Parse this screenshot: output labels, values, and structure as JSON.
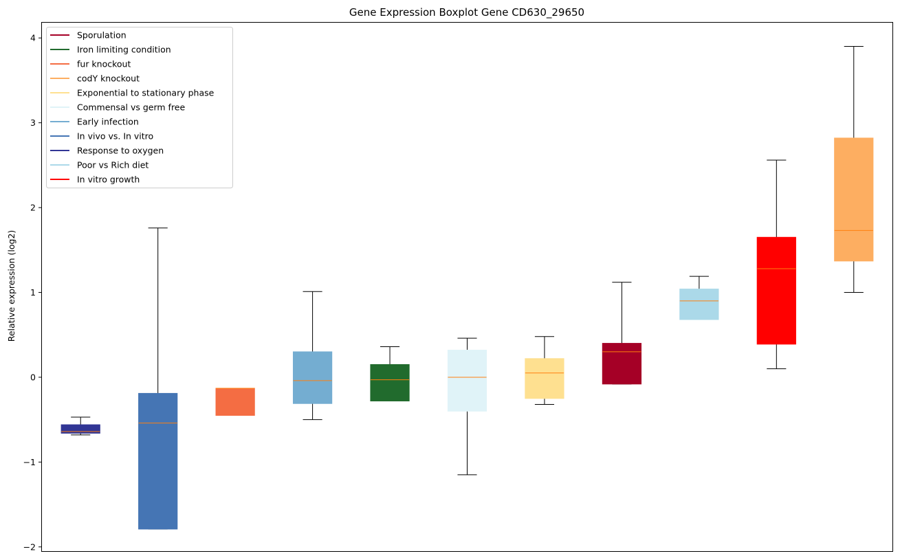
{
  "chart_data": {
    "type": "boxplot",
    "title": "Gene Expression Boxplot Gene CD630_29650",
    "ylabel": "Relative expression (log2)",
    "xlabel": "",
    "ylim": [
      -2.05,
      4.18
    ],
    "yticks": [
      -2,
      -1,
      0,
      1,
      2,
      3,
      4
    ],
    "ytick_labels": [
      "−2",
      "−1",
      "0",
      "1",
      "2",
      "3",
      "4"
    ],
    "legend_position": "upper-left",
    "legend": [
      {
        "label": "Sporulation",
        "color": "#a50026"
      },
      {
        "label": "Iron limiting condition",
        "color": "#216b2d"
      },
      {
        "label": "fur knockout",
        "color": "#f46d43"
      },
      {
        "label": "codY knockout",
        "color": "#fdae61"
      },
      {
        "label": "Exponential to stationary phase",
        "color": "#fee090"
      },
      {
        "label": "Commensal vs germ free",
        "color": "#e0f3f8"
      },
      {
        "label": "Early infection",
        "color": "#74add1"
      },
      {
        "label": "In vivo vs. In vitro",
        "color": "#4575b4"
      },
      {
        "label": "Response to oxygen",
        "color": "#313695"
      },
      {
        "label": "Poor vs Rich diet",
        "color": "#abd9e9"
      },
      {
        "label": "In vitro growth",
        "color": "#ff0000"
      }
    ],
    "boxes": [
      {
        "condition": "Response to oxygen",
        "color": "#313695",
        "whisker_low": -0.68,
        "q1": -0.66,
        "median": -0.64,
        "q3": -0.56,
        "whisker_high": -0.47
      },
      {
        "condition": "In vivo vs. In vitro",
        "color": "#4575b4",
        "whisker_low": -1.79,
        "q1": -1.79,
        "median": -0.54,
        "q3": -0.19,
        "whisker_high": 1.76
      },
      {
        "condition": "fur knockout",
        "color": "#f46d43",
        "whisker_low": -0.45,
        "q1": -0.45,
        "median": -0.13,
        "q3": -0.13,
        "whisker_high": -0.13
      },
      {
        "condition": "Early infection",
        "color": "#74add1",
        "whisker_low": -0.5,
        "q1": -0.31,
        "median": -0.04,
        "q3": 0.3,
        "whisker_high": 1.01
      },
      {
        "condition": "Iron limiting condition",
        "color": "#216b2d",
        "whisker_low": -0.28,
        "q1": -0.28,
        "median": -0.03,
        "q3": 0.15,
        "whisker_high": 0.36
      },
      {
        "condition": "Commensal vs germ free",
        "color": "#e0f3f8",
        "whisker_low": -1.15,
        "q1": -0.4,
        "median": 0.0,
        "q3": 0.32,
        "whisker_high": 0.46
      },
      {
        "condition": "Exponential to stationary phase",
        "color": "#fee090",
        "whisker_low": -0.32,
        "q1": -0.25,
        "median": 0.05,
        "q3": 0.22,
        "whisker_high": 0.48
      },
      {
        "condition": "Sporulation",
        "color": "#a50026",
        "whisker_low": -0.08,
        "q1": -0.08,
        "median": 0.3,
        "q3": 0.4,
        "whisker_high": 1.12
      },
      {
        "condition": "Poor vs Rich diet",
        "color": "#abd9e9",
        "whisker_low": 0.68,
        "q1": 0.68,
        "median": 0.9,
        "q3": 1.04,
        "whisker_high": 1.19
      },
      {
        "condition": "In vitro growth",
        "color": "#ff0000",
        "whisker_low": 0.1,
        "q1": 0.39,
        "median": 1.28,
        "q3": 1.65,
        "whisker_high": 2.56
      },
      {
        "condition": "codY knockout",
        "color": "#fdae61",
        "whisker_low": 1.0,
        "q1": 1.37,
        "median": 1.73,
        "q3": 2.82,
        "whisker_high": 3.9
      }
    ],
    "median_color": "#ff7f0e"
  }
}
